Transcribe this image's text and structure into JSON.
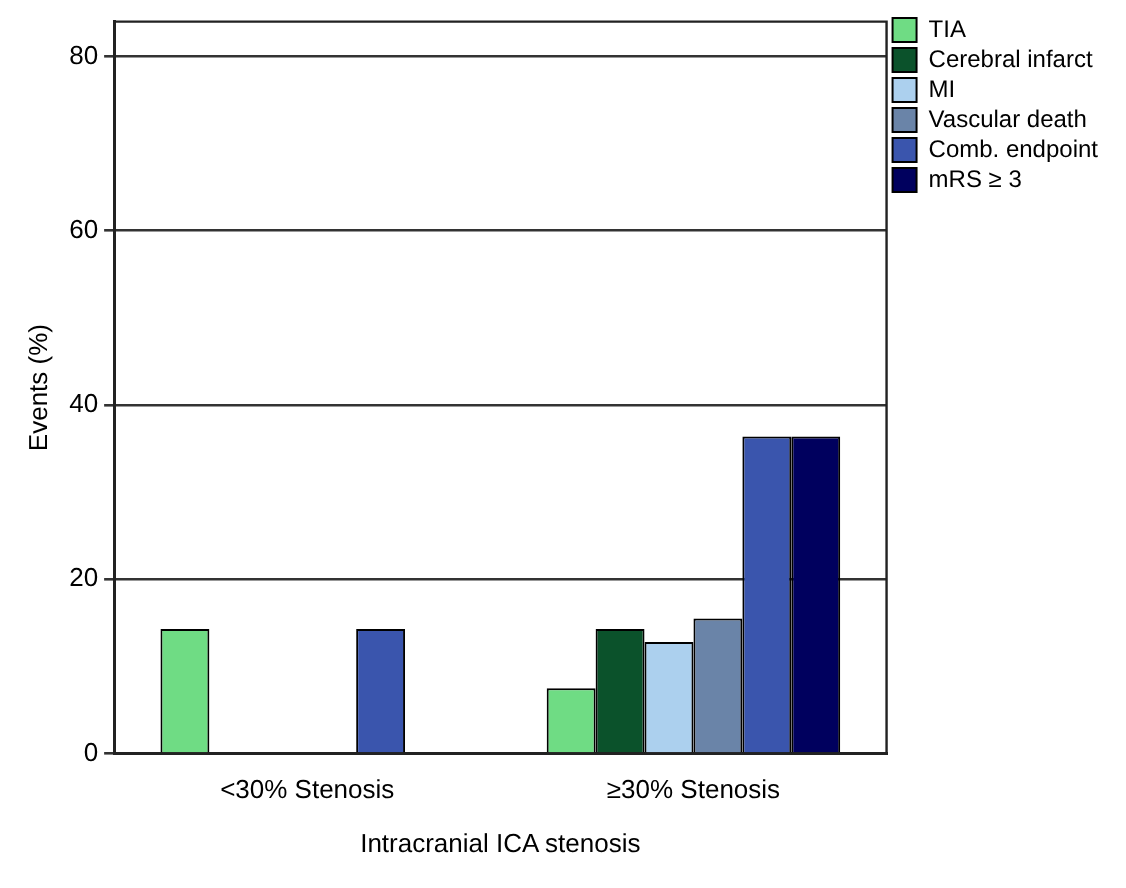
{
  "chart_data": {
    "type": "bar",
    "xlabel": "Intracranial ICA stenosis",
    "ylabel": "Events (%)",
    "categories": [
      "<30% Stenosis",
      "≥30% Stenosis"
    ],
    "series": [
      {
        "name": "TIA",
        "color": "#6fdc84",
        "values": [
          14.3,
          7.5
        ]
      },
      {
        "name": "Cerebral infarct",
        "color": "#0b522b",
        "values": [
          0,
          14.3
        ]
      },
      {
        "name": "MI",
        "color": "#acd0ee",
        "values": [
          0,
          12.8
        ]
      },
      {
        "name": "Vascular death",
        "color": "#6a84a8",
        "values": [
          0,
          15.5
        ]
      },
      {
        "name": "Comb. endpoint",
        "color": "#3a55ad",
        "values": [
          14.3,
          36.4
        ]
      },
      {
        "name": "mRS ≥ 3",
        "color": "#00005e",
        "values": [
          0,
          36.4
        ]
      }
    ],
    "ylim": [
      0,
      84
    ],
    "yticks": [
      0,
      20,
      40,
      60,
      80
    ],
    "grid": "y",
    "legend": "top right"
  }
}
